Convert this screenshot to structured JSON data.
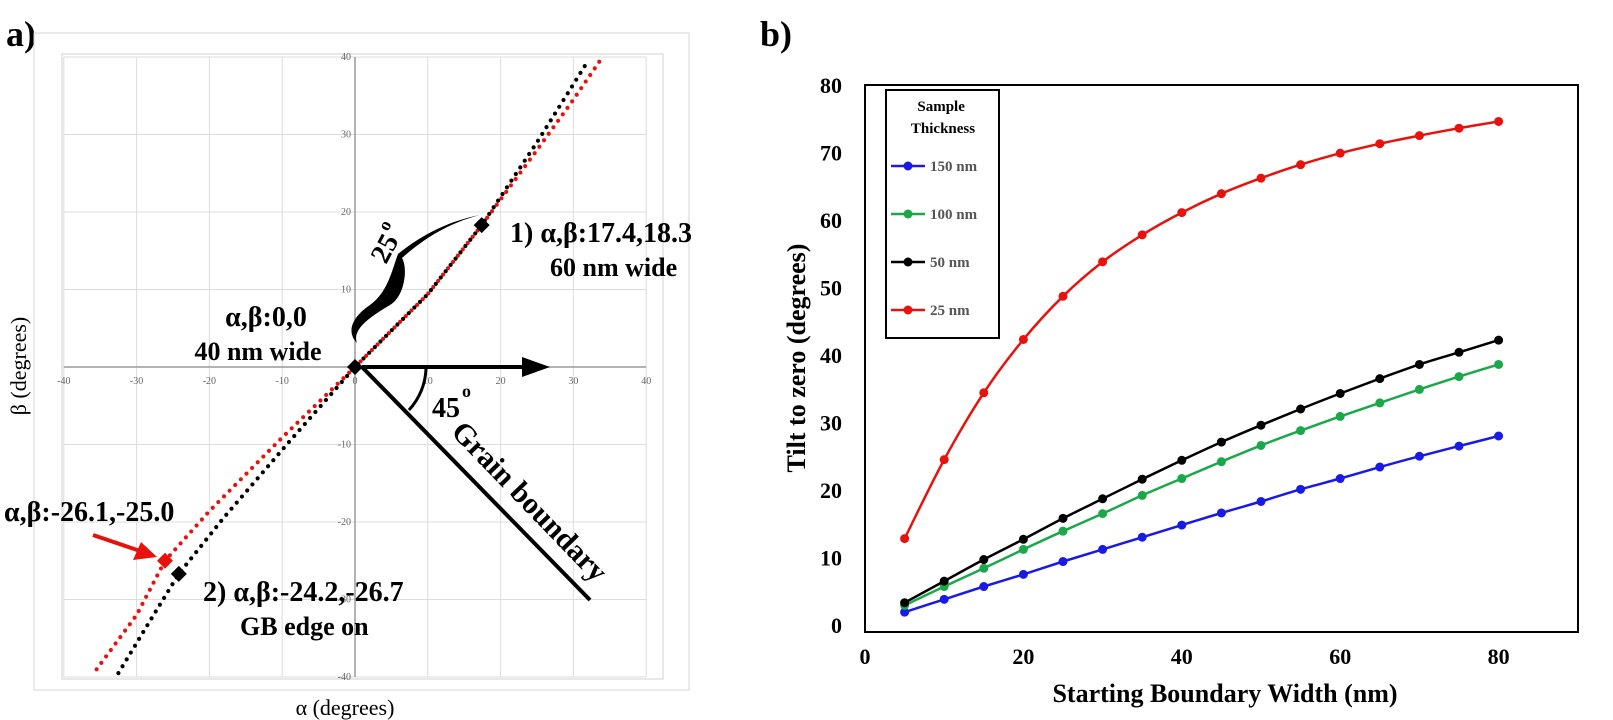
{
  "panels": {
    "a": "a)",
    "b": "b)"
  },
  "chart_data": [
    {
      "type": "scatter",
      "xlabel": "α (degrees)",
      "ylabel": "β (degrees)",
      "xlim": [
        -40,
        40
      ],
      "ylim": [
        -40,
        40
      ],
      "x_ticks": [
        -40,
        -30,
        -20,
        -10,
        0,
        10,
        20,
        30,
        40
      ],
      "y_ticks": [
        -40,
        -30,
        -20,
        -10,
        10,
        20,
        30,
        40
      ],
      "grid": true,
      "series": [
        {
          "color": "#e8120c",
          "x": [
            -35.5,
            -30,
            -26.1,
            -20,
            -10,
            0,
            10,
            17.4,
            25,
            30,
            34
          ],
          "y": [
            -39,
            -32,
            -25.0,
            -18.6,
            -9.1,
            0,
            9.4,
            18.3,
            28,
            34.5,
            40
          ]
        },
        {
          "color": "#000000",
          "x": [
            -32.5,
            -28,
            -24.2,
            -18,
            -9,
            0,
            10,
            17.4,
            25,
            32
          ],
          "y": [
            -39.5,
            -32.5,
            -26.7,
            -19.4,
            -9.6,
            0,
            9.4,
            18.3,
            29,
            39.5
          ]
        }
      ],
      "markers": [
        {
          "color": "#000000",
          "x": 0,
          "y": 0
        },
        {
          "color": "#000000",
          "x": 17.4,
          "y": 18.3
        },
        {
          "color": "#e8120c",
          "x": -26.1,
          "y": -25.0
        },
        {
          "color": "#000000",
          "x": -24.2,
          "y": -26.7
        }
      ],
      "annotations": {
        "origin_line1": "α,β:0,0",
        "origin_line2": "40 nm wide",
        "p1_line1": "1) α,β:17.4,18.3",
        "p1_line2": "60 nm wide",
        "p2_line1": "2) α,β:-24.2,-26.7",
        "p2_line2": "GB edge on",
        "red_point": "α,β:-26.1,-25.0",
        "angle_25": "25",
        "angle_45": "45",
        "degree_mark": "o",
        "grain_boundary": "Grain boundary"
      }
    },
    {
      "type": "line",
      "xlabel": "Starting Boundary Width (nm)",
      "ylabel": "Tilt to zero (degrees)",
      "xlim": [
        0,
        90
      ],
      "ylim": [
        0,
        80
      ],
      "x_ticks": [
        0,
        20,
        40,
        60,
        80
      ],
      "y_ticks": [
        0,
        10,
        20,
        30,
        40,
        50,
        60,
        70,
        80
      ],
      "legend_title": "Sample Thickness",
      "legend_position": "top-left",
      "x": [
        5,
        10,
        15,
        20,
        25,
        30,
        35,
        40,
        45,
        50,
        55,
        60,
        65,
        70,
        75,
        80
      ],
      "series": [
        {
          "name": "150 nm",
          "color": "#1a1ae6",
          "values": [
            1.9,
            3.8,
            5.7,
            7.5,
            9.4,
            11.2,
            13.0,
            14.8,
            16.6,
            18.3,
            20.1,
            21.7,
            23.4,
            25.0,
            26.5,
            28.0
          ]
        },
        {
          "name": "100 nm",
          "color": "#1aa84a",
          "values": [
            2.9,
            5.7,
            8.4,
            11.2,
            13.9,
            16.5,
            19.2,
            21.7,
            24.2,
            26.6,
            28.8,
            30.9,
            32.9,
            34.9,
            36.8,
            38.6
          ]
        },
        {
          "name": "50 nm",
          "color": "#000000",
          "values": [
            3.3,
            6.5,
            9.7,
            12.7,
            15.8,
            18.7,
            21.6,
            24.4,
            27.1,
            29.6,
            32.0,
            34.3,
            36.5,
            38.6,
            40.4,
            42.2
          ]
        },
        {
          "name": "25 nm",
          "color": "#e8120c",
          "values": [
            12.8,
            24.5,
            34.4,
            42.3,
            48.7,
            53.8,
            57.8,
            61.1,
            63.9,
            66.2,
            68.2,
            69.9,
            71.3,
            72.5,
            73.6,
            74.6
          ]
        }
      ]
    }
  ]
}
